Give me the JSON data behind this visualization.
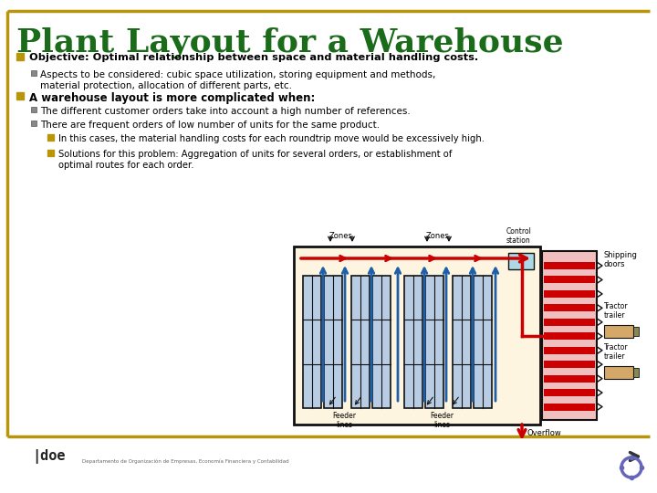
{
  "title": "Plant Layout for a Warehouse",
  "title_color": "#1a6b1a",
  "title_fontsize": 26,
  "bg_color": "#ffffff",
  "border_color": "#b8960c",
  "bullet_color": "#b8960c",
  "bullet2_color": "#555555",
  "text_color": "#000000",
  "bullet1_text": "Objective: Optimal relationship between space and material handling costs.",
  "sub1_text": "Aspects to be considered: cubic space utilization, storing equipment and methods,\nmaterial protection, allocation of different parts, etc.",
  "bullet2_text": "A warehouse layout is more complicated when:",
  "sub2a_text": "The different customer orders take into account a high number of references.",
  "sub2b_text": "There are frequent orders of low number of units for the same product.",
  "sub3a_text": "In this cases, the material handling costs for each roundtrip move would be excessively high.",
  "sub3b_text": "Solutions for this problem: Aggregation of units for several orders, or establishment of\noptimal routes for each order.",
  "diagram_bg": "#fdf5e0",
  "diagram_border": "#111111",
  "shelf_fill": "#b8cce4",
  "shelf_border": "#111111",
  "red_color": "#cc0000",
  "blue_color": "#1e5fa8",
  "shipping_bg": "#f0c0c0",
  "tractor_fill": "#d4a868",
  "control_fill": "#add8e6"
}
